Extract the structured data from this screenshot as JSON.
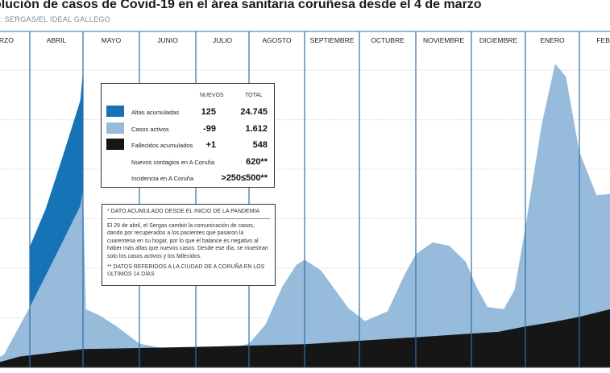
{
  "header": {
    "title": "olución de casos de Covid-19 en el área sanitaria coruñesa desde el 4 de marzo",
    "source": "TE: SERGAS/EL IDEAL GALLEGO"
  },
  "colors": {
    "altas": "#1673b5",
    "activos": "#97bbdb",
    "fallecidos": "#161616",
    "month_line": "#2e6fa6"
  },
  "legend": {
    "col_new": "NUEVOS",
    "col_total": "TOTAL",
    "rows": [
      {
        "label": "Altas acumuladas",
        "new": "125",
        "total": "24.745",
        "color": "#1673b5"
      },
      {
        "label": "Casos activos",
        "new": "-99",
        "total": "1.612",
        "color": "#97bbdb"
      },
      {
        "label": "Fallecidos acumulados",
        "new": "+1",
        "total": "548",
        "color": "#161616"
      }
    ],
    "extra": [
      {
        "label": "Nuevos contagios en A Coruña",
        "total": "620**"
      },
      {
        "label": "Incidencia en A Coruña",
        "total": ">250≤500**"
      }
    ]
  },
  "notes": {
    "heading": "* DATO ACUMULADO DESDE EL INICIO DE LA PANDEMIA",
    "body": "El 29 de abril, el Sergas cambió la comunicación de casos, dando por recuperados a los pacientes que pasaron la cuarentena en su hogar, por lo que el balance es negativo al haber más altas que nuevos casos. Desde ese día, se muestran solo los casos activos y los fallecidos.",
    "footer": "** DATOS REFERIDOS A LA CIUDAD DE A CORUÑA EN LOS ÚLTIMOS 14 DÍAS"
  },
  "chart_data": {
    "type": "area",
    "title": "olución de casos de Covid-19 en el área sanitaria coruñesa desde el 4 de marzo",
    "x_unit": "month",
    "months": [
      "ARZO",
      "ABRIL",
      "MAYO",
      "JUNIO",
      "JULIO",
      "AGOSTO",
      "SEPTIEMBRE",
      "OCTUBRE",
      "NOVIEMBRE",
      "DICIEMBRE",
      "ENERO",
      "FEBRE"
    ],
    "grid": true,
    "series": [
      {
        "name": "Casos activos",
        "points": [
          [
            0.05,
            0
          ],
          [
            0.5,
            120
          ],
          [
            1.0,
            560
          ],
          [
            1.5,
            1050
          ],
          [
            1.95,
            1500
          ],
          [
            2.0,
            1650
          ],
          [
            2.05,
            540
          ],
          [
            2.3,
            480
          ],
          [
            2.6,
            380
          ],
          [
            3.0,
            220
          ],
          [
            3.5,
            170
          ],
          [
            4.0,
            150
          ],
          [
            4.5,
            160
          ],
          [
            5.0,
            220
          ],
          [
            5.3,
            400
          ],
          [
            5.6,
            750
          ],
          [
            5.85,
            950
          ],
          [
            6.0,
            1000
          ],
          [
            6.3,
            900
          ],
          [
            6.8,
            550
          ],
          [
            7.1,
            430
          ],
          [
            7.5,
            520
          ],
          [
            7.8,
            860
          ],
          [
            8.0,
            1050
          ],
          [
            8.3,
            1160
          ],
          [
            8.6,
            1130
          ],
          [
            8.9,
            980
          ],
          [
            9.1,
            740
          ],
          [
            9.3,
            560
          ],
          [
            9.6,
            540
          ],
          [
            9.8,
            720
          ],
          [
            10.0,
            1300
          ],
          [
            10.3,
            2250
          ],
          [
            10.55,
            2820
          ],
          [
            10.75,
            2700
          ],
          [
            11.0,
            2000
          ],
          [
            11.3,
            1600
          ],
          [
            11.6,
            1612
          ]
        ]
      },
      {
        "name": "Altas acumuladas",
        "points": [
          [
            1.0,
            560
          ],
          [
            1.3,
            620
          ],
          [
            1.6,
            780
          ],
          [
            1.95,
            980
          ],
          [
            2.0,
            1100
          ]
        ]
      },
      {
        "name": "Fallecidos acumulados",
        "points": [
          [
            0.05,
            0
          ],
          [
            0.8,
            100
          ],
          [
            2.0,
            170
          ],
          [
            4.0,
            190
          ],
          [
            6.0,
            215
          ],
          [
            8.0,
            280
          ],
          [
            9.5,
            330
          ],
          [
            10.0,
            380
          ],
          [
            10.5,
            420
          ],
          [
            11.0,
            470
          ],
          [
            11.6,
            548
          ]
        ]
      }
    ]
  }
}
